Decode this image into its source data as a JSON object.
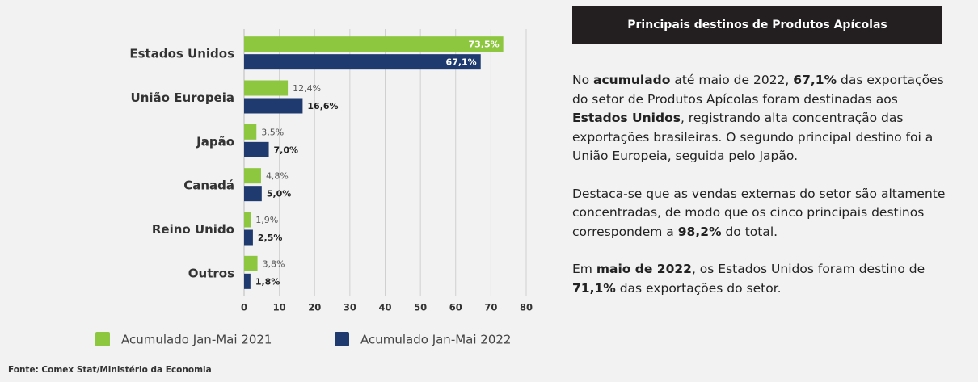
{
  "chart_data": {
    "type": "hbar",
    "categories": [
      "Estados Unidos",
      "União Europeia",
      "Japão",
      "Canadá",
      "Reino Unido",
      "Outros"
    ],
    "series": [
      {
        "name": "Acumulado Jan-Mai 2021",
        "color": "#8dc63f",
        "values": [
          73.5,
          12.4,
          3.5,
          4.8,
          1.9,
          3.8
        ],
        "value_labels": [
          "73,5%",
          "12,4%",
          "3,5%",
          "4,8%",
          "1,9%",
          "3,8%"
        ]
      },
      {
        "name": "Acumulado Jan-Mai 2022",
        "color": "#1f3a6e",
        "values": [
          67.1,
          16.6,
          7.0,
          5.0,
          2.5,
          1.8
        ],
        "value_labels": [
          "67,1%",
          "16,6%",
          "7,0%",
          "5,0%",
          "2,5%",
          "1,8%"
        ]
      }
    ],
    "xlim": [
      0,
      80
    ],
    "xticks": [
      0,
      10,
      20,
      30,
      40,
      50,
      60,
      70,
      80
    ],
    "grid": true,
    "legend": "bottom"
  },
  "source": "Fonte: Comex Stat/Ministério da Economia",
  "panel": {
    "title": "Principais destinos de Produtos Apícolas",
    "paragraphs": [
      [
        {
          "text": "No "
        },
        {
          "text": "acumulado",
          "bold": true
        },
        {
          "text": " até maio de 2022, "
        },
        {
          "text": "67,1%",
          "bold": true
        },
        {
          "text": " das exportações do setor de Produtos Apícolas foram destinadas aos "
        },
        {
          "text": "Estados Unidos",
          "bold": true
        },
        {
          "text": ", registrando alta concentração das exportações brasileiras. O segundo principal destino foi a União Europeia, seguida pelo Japão."
        }
      ],
      [
        {
          "text": "Destaca-se que as vendas externas do setor são altamente concentradas, de modo que os cinco principais destinos correspondem a "
        },
        {
          "text": "98,2%",
          "bold": true
        },
        {
          "text": " do total."
        }
      ],
      [
        {
          "text": "Em "
        },
        {
          "text": "maio de 2022",
          "bold": true
        },
        {
          "text": ", os Estados Unidos foram destino de "
        },
        {
          "text": "71,1%",
          "bold": true
        },
        {
          "text": " das exportações do setor."
        }
      ]
    ]
  }
}
